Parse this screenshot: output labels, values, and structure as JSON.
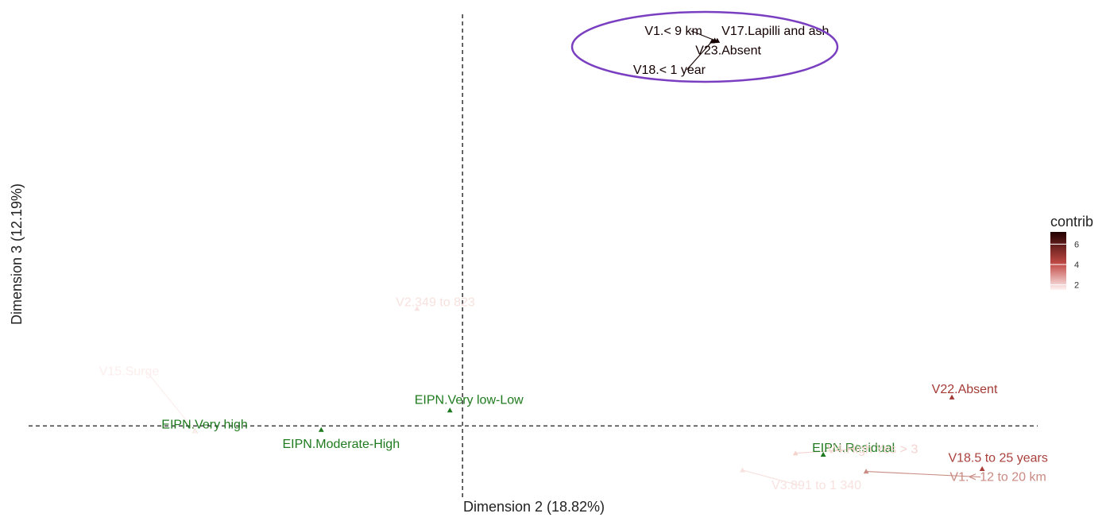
{
  "chart_data": {
    "type": "scatter",
    "xlabel": "Dimension 2 (18.82%)",
    "ylabel": "Dimension 3 (12.19%)",
    "xlim": [
      -1.72,
      2.28
    ],
    "ylim": [
      -0.28,
      1.58
    ],
    "reference_lines": {
      "x": 0,
      "y": 0
    },
    "grid": false,
    "legend": {
      "title": "contrib",
      "placement": "right",
      "ticks": [
        "6",
        "4",
        "2"
      ],
      "tick_values": [
        6,
        4,
        2
      ],
      "range": [
        1.5,
        7.2
      ],
      "colors": [
        "#fff0ef",
        "#b33a3a",
        "#2a0000"
      ]
    },
    "points": [
      {
        "name": "EIPN.Very high",
        "x": -1.06,
        "y": -0.02,
        "kind": "supplementary",
        "color": "#1f7a1f"
      },
      {
        "name": "EIPN.Moderate-High",
        "x": -0.56,
        "y": -0.015,
        "kind": "supplementary",
        "color": "#1f7a1f"
      },
      {
        "name": "EIPN.Very low-Low",
        "x": -0.05,
        "y": 0.06,
        "kind": "supplementary",
        "color": "#1f7a1f"
      },
      {
        "name": "EIPN.Residual",
        "x": 1.43,
        "y": -0.11,
        "kind": "supplementary",
        "color": "#1f7a1f"
      },
      {
        "name": "V1.< 9 km",
        "x": 1.0,
        "y": 1.48,
        "kind": "active",
        "contrib": 7.0,
        "color": "#140000"
      },
      {
        "name": "V17.Lapilli and ash",
        "x": 1.01,
        "y": 1.479,
        "kind": "active",
        "contrib": 7.0,
        "color": "#140000"
      },
      {
        "name": "V23.Absent",
        "x": 1.0,
        "y": 1.478,
        "kind": "active",
        "contrib": 7.0,
        "color": "#140000"
      },
      {
        "name": "V18.< 1 year",
        "x": 0.99,
        "y": 1.477,
        "kind": "active",
        "contrib": 7.0,
        "color": "#140000"
      },
      {
        "name": "V22.Absent",
        "x": 1.94,
        "y": 0.11,
        "kind": "active",
        "contrib": 4.5,
        "color": "#a33a35"
      },
      {
        "name": "V18.5 to 25 years",
        "x": 2.06,
        "y": -0.165,
        "kind": "active",
        "contrib": 4.2,
        "color": "#a9403c"
      },
      {
        "name": "V1.< 12 to 20 km",
        "x": 1.6,
        "y": -0.175,
        "kind": "active",
        "contrib": 3.2,
        "color": "#c98b83"
      },
      {
        "name": "V4.High Yes > 3",
        "x": 1.32,
        "y": -0.105,
        "kind": "active",
        "contrib": 2.3,
        "color": "#f4d3cf"
      },
      {
        "name": "V3.891 to 1 340",
        "x": 1.11,
        "y": -0.17,
        "kind": "active",
        "contrib": 1.9,
        "color": "#f7e2df"
      },
      {
        "name": "V2.349 to 823",
        "x": -0.18,
        "y": 0.45,
        "kind": "active",
        "contrib": 1.9,
        "color": "#f7e2df"
      },
      {
        "name": "V15.Surge",
        "x": -1.06,
        "y": -0.02,
        "kind": "active",
        "contrib": 1.8,
        "color": "#fbeeec"
      }
    ],
    "annotation": {
      "type": "ellipse",
      "color": "#7a3fc0",
      "encloses": [
        "V1.< 9 km",
        "V17.Lapilli and ash",
        "V23.Absent",
        "V18.< 1 year"
      ]
    }
  }
}
